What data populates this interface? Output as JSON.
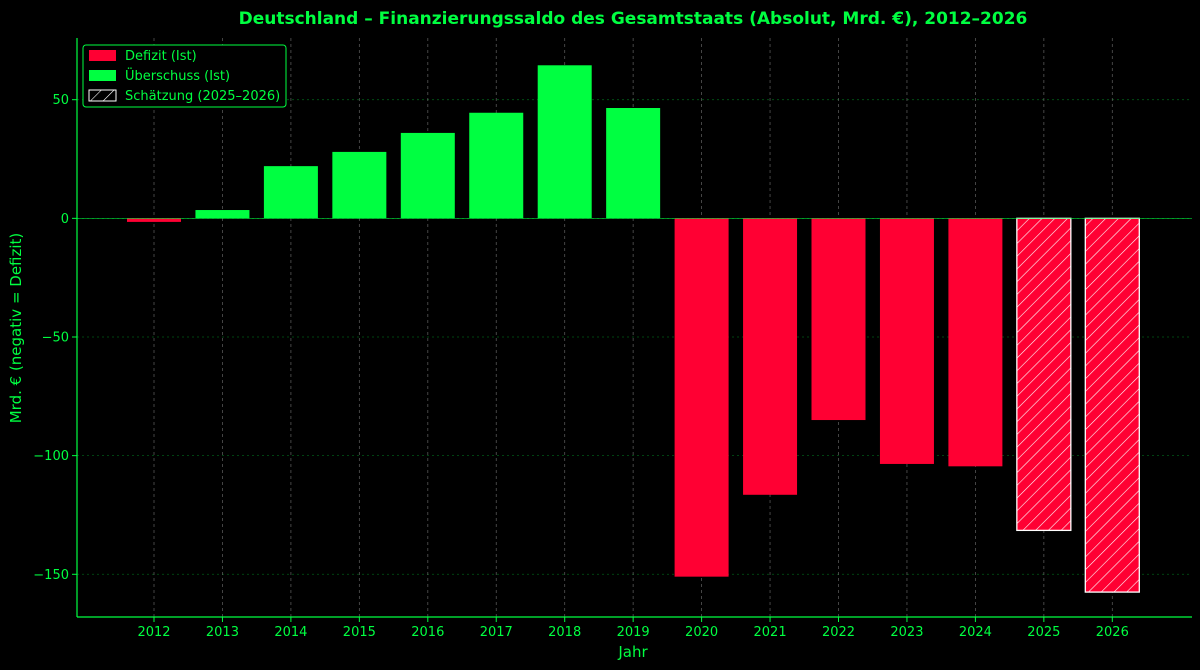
{
  "colors": {
    "accent": "#00ff41",
    "deficit": "#ff0033",
    "surplus": "#00ff41",
    "background": "#000000",
    "grid": "#7a7a7a",
    "estimate_edge": "#ffffff",
    "hatch": "#ffffff"
  },
  "chart_data": {
    "type": "bar",
    "title": "Deutschland – Finanzierungssaldo des Gesamtstaats (Absolut, Mrd. €), 2012–2026",
    "xlabel": "Jahr",
    "ylabel": "Mrd. € (negativ = Defizit)",
    "categories": [
      "2012",
      "2013",
      "2014",
      "2015",
      "2016",
      "2017",
      "2018",
      "2019",
      "2020",
      "2021",
      "2022",
      "2023",
      "2024",
      "2025",
      "2026"
    ],
    "values": [
      -1.5,
      3.5,
      22,
      28,
      36,
      44.5,
      64.5,
      46.5,
      -151,
      -116.5,
      -85,
      -103.5,
      -104.5,
      -131.5,
      -157.5
    ],
    "estimate": [
      false,
      false,
      false,
      false,
      false,
      false,
      false,
      false,
      false,
      false,
      false,
      false,
      false,
      true,
      true
    ],
    "ylim": [
      -168,
      76
    ],
    "yticks": [
      -150,
      -100,
      -50,
      0,
      50
    ],
    "ytick_labels": [
      "−150",
      "−100",
      "−50",
      "0",
      "50"
    ],
    "grid": true,
    "legend_position": "top-left",
    "legend": [
      {
        "label": "Defizit (Ist)",
        "kind": "deficit"
      },
      {
        "label": "Überschuss (Ist)",
        "kind": "surplus"
      },
      {
        "label": "Schätzung (2025–2026)",
        "kind": "estimate"
      }
    ]
  }
}
